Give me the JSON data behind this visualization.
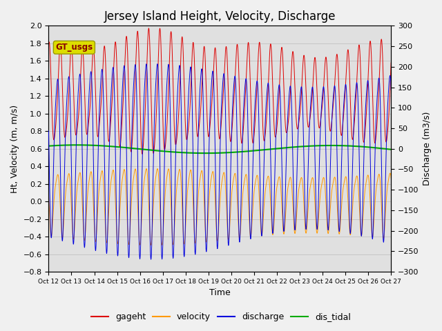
{
  "title": "Jersey Island Height, Velocity, Discharge",
  "xlabel": "Time",
  "ylabel_left": "Ht, Velocity (m, m/s)",
  "ylabel_right": "Discharge (m3/s)",
  "ylim_left": [
    -0.8,
    2.0
  ],
  "ylim_right": [
    -300,
    300
  ],
  "yticks_left": [
    -0.8,
    -0.6,
    -0.4,
    -0.2,
    0.0,
    0.2,
    0.4,
    0.6,
    0.8,
    1.0,
    1.2,
    1.4,
    1.6,
    1.8,
    2.0
  ],
  "yticks_right": [
    -300,
    -250,
    -200,
    -150,
    -100,
    -50,
    0,
    50,
    100,
    150,
    200,
    250,
    300
  ],
  "xtick_labels": [
    "Oct 12",
    "Oct 13",
    "Oct 14",
    "Oct 15",
    "Oct 16",
    "Oct 17",
    "Oct 18",
    "Oct 19",
    "Oct 20",
    "Oct 21",
    "Oct 22",
    "Oct 23",
    "Oct 24",
    "Oct 25",
    "Oct 26",
    "Oct 27"
  ],
  "legend_labels": [
    "gageht",
    "velocity",
    "discharge",
    "dis_tidal"
  ],
  "legend_colors": [
    "#dd0000",
    "#ff9900",
    "#0000dd",
    "#00aa00"
  ],
  "bg_color": "#e0e0e0",
  "gt_usgs_label": "GT_usgs",
  "gt_usgs_bg": "#dddd00",
  "gt_usgs_fg": "#880000",
  "n_days": 16,
  "tidal_period_hours": 12.42,
  "title_fontsize": 12,
  "axis_fontsize": 9,
  "tick_fontsize": 8,
  "legend_fontsize": 9
}
